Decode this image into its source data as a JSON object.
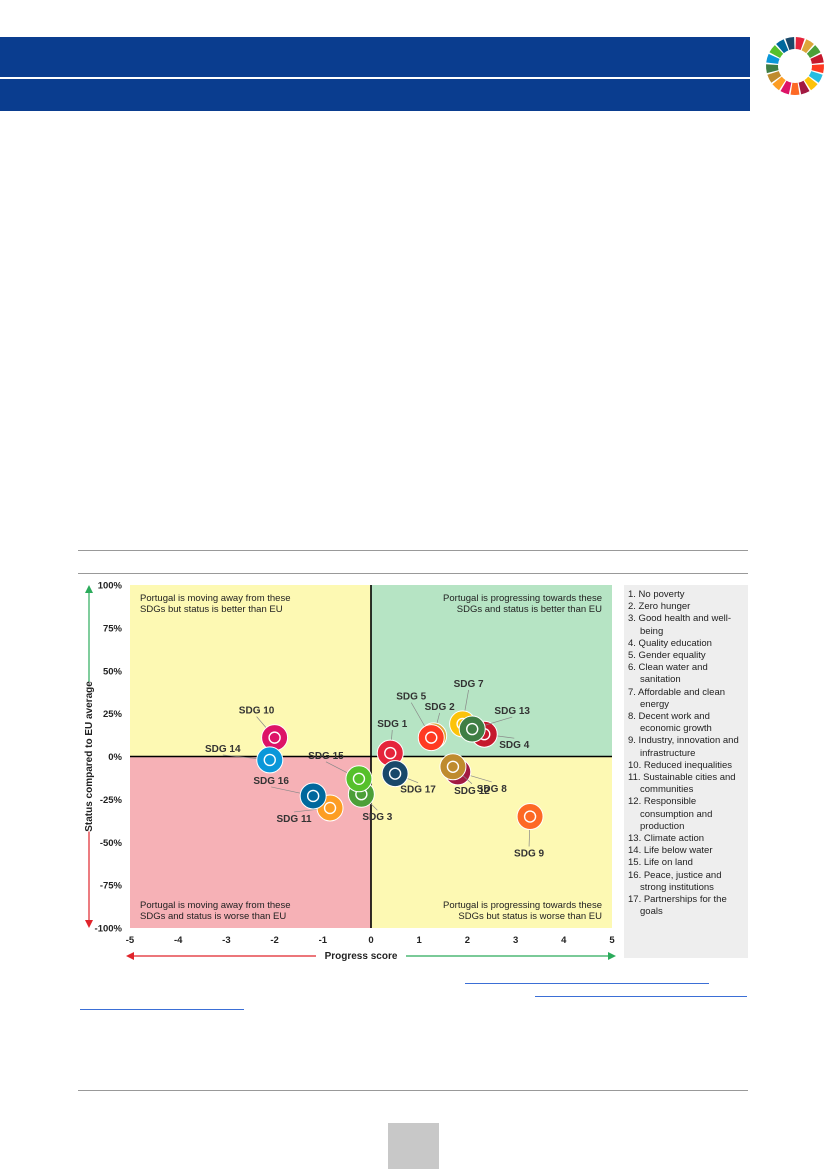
{
  "colors": {
    "banner": "#0a3d8f",
    "q_top_left": "#fdf9b3",
    "q_top_right": "#b6e4c4",
    "q_bottom_left": "#f6b1b6",
    "q_bottom_right": "#fdf9b3",
    "arrow_red": "#e0242b",
    "arrow_green": "#2bab5b"
  },
  "chart_data": {
    "type": "scatter",
    "xlabel": "Progress score",
    "ylabel": "Status compared to EU average",
    "xlim": [
      -5,
      5
    ],
    "ylim": [
      -100,
      100
    ],
    "xticks": [
      "-5",
      "-4",
      "-3",
      "-2",
      "-1",
      "0",
      "1",
      "2",
      "3",
      "4",
      "5"
    ],
    "yticks": [
      "100%",
      "75%",
      "50%",
      "25%",
      "0%",
      "-25%",
      "-50%",
      "-75%",
      "-100%"
    ],
    "quadrant_labels": {
      "top_left": [
        "Portugal is moving away from these",
        "SDGs but status is better than EU"
      ],
      "top_right": [
        "Portugal is progressing towards these",
        "SDGs and status is better than EU"
      ],
      "bottom_left": [
        "Portugal is moving away from these",
        "SDGs and status is worse than EU"
      ],
      "bottom_right": [
        "Portugal is progressing towards these",
        "SDGs but status is worse than EU"
      ]
    },
    "points": [
      {
        "label": "SDG 1",
        "x": 0.4,
        "y": 2,
        "color": "#e5243b",
        "icon": "family-icon"
      },
      {
        "label": "SDG 2",
        "x": 1.3,
        "y": 12,
        "color": "#dda63a",
        "icon": "bowl-icon"
      },
      {
        "label": "SDG 3",
        "x": -0.2,
        "y": -22,
        "color": "#4c9f38",
        "icon": "heartbeat-icon"
      },
      {
        "label": "SDG 4",
        "x": 2.35,
        "y": 13,
        "color": "#c5192d",
        "icon": "book-icon"
      },
      {
        "label": "SDG 5",
        "x": 1.25,
        "y": 11,
        "color": "#ff3a21",
        "icon": "gender-icon"
      },
      {
        "label": "SDG 7",
        "x": 1.9,
        "y": 19,
        "color": "#fcc30b",
        "icon": "sun-icon"
      },
      {
        "label": "SDG 8",
        "x": 1.8,
        "y": -9,
        "color": "#a21942",
        "icon": "growth-icon"
      },
      {
        "label": "SDG 9",
        "x": 3.3,
        "y": -35,
        "color": "#fd6925",
        "icon": "cubes-icon"
      },
      {
        "label": "SDG 10",
        "x": -2.0,
        "y": 11,
        "color": "#dd1367",
        "icon": "equality-icon"
      },
      {
        "label": "SDG 11",
        "x": -0.85,
        "y": -30,
        "color": "#fd9d24",
        "icon": "city-icon"
      },
      {
        "label": "SDG 12",
        "x": 1.7,
        "y": -6,
        "color": "#bf8b2e",
        "icon": "infinity-icon"
      },
      {
        "label": "SDG 13",
        "x": 2.1,
        "y": 16,
        "color": "#3f7e44",
        "icon": "eye-icon"
      },
      {
        "label": "SDG 14",
        "x": -2.1,
        "y": -2,
        "color": "#0a97d9",
        "icon": "fish-icon"
      },
      {
        "label": "SDG 15",
        "x": -0.25,
        "y": -13,
        "color": "#56c02b",
        "icon": "tree-icon"
      },
      {
        "label": "SDG 16",
        "x": -1.2,
        "y": -23,
        "color": "#00689d",
        "icon": "dove-icon"
      },
      {
        "label": "SDG 17",
        "x": 0.5,
        "y": -10,
        "color": "#19486a",
        "icon": "flower-icon"
      }
    ]
  },
  "legend": [
    "1. No poverty",
    "2. Zero hunger",
    "3. Good health and well-",
    "being",
    "4. Quality education",
    "5. Gender equality",
    "6. Clean water and",
    "sanitation",
    "7. Affordable and clean",
    "energy",
    "8. Decent work and",
    "economic growth",
    "9. Industry, innovation and",
    "infrastructure",
    "10. Reduced inequalities",
    "11. Sustainable cities and",
    "communities",
    "12. Responsible",
    "consumption and",
    "production",
    "13. Climate action",
    "14. Life below water",
    "15. Life on land",
    "16. Peace, justice and",
    "strong institutions",
    "17. Partnerships for the",
    "goals"
  ]
}
